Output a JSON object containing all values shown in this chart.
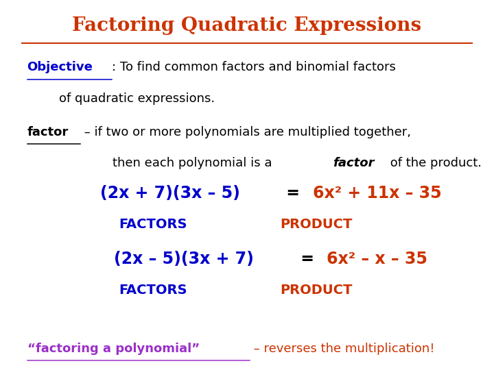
{
  "title": "Factoring Quadratic Expressions",
  "title_color": "#CC3300",
  "background_color": "#FFFFFF",
  "objective_label": "Objective",
  "objective_label_color": "#0000CC",
  "objective_line1_rest": ": To find common factors and binomial factors",
  "objective_line2": "        of quadratic expressions.",
  "factor_label": "factor",
  "factor_line1_rest": " – if two or more polynomials are multiplied together,",
  "factor_line2_pre": "        then each polynomial is a ",
  "factor_line2_bold": "factor",
  "factor_line2_post": " of the product.",
  "eq1_left": "(2x + 7)(3x – 5)",
  "eq1_mid": " = ",
  "eq1_right": "6x² + 11x – 35",
  "eq2_left": "(2x – 5)(3x + 7)",
  "eq2_mid": " = ",
  "eq2_right": "6x² – x – 35",
  "factors_label": "FACTORS",
  "product_label": "PRODUCT",
  "blue_color": "#0000CC",
  "red_color": "#CC3300",
  "purple_color": "#9B30C8",
  "black_color": "#000000",
  "bottom_quote": "“factoring a polynomial”",
  "bottom_rest": " – reverses the multiplication!",
  "bottom_quote_color": "#9B30C8",
  "bottom_text_color": "#CC3300"
}
